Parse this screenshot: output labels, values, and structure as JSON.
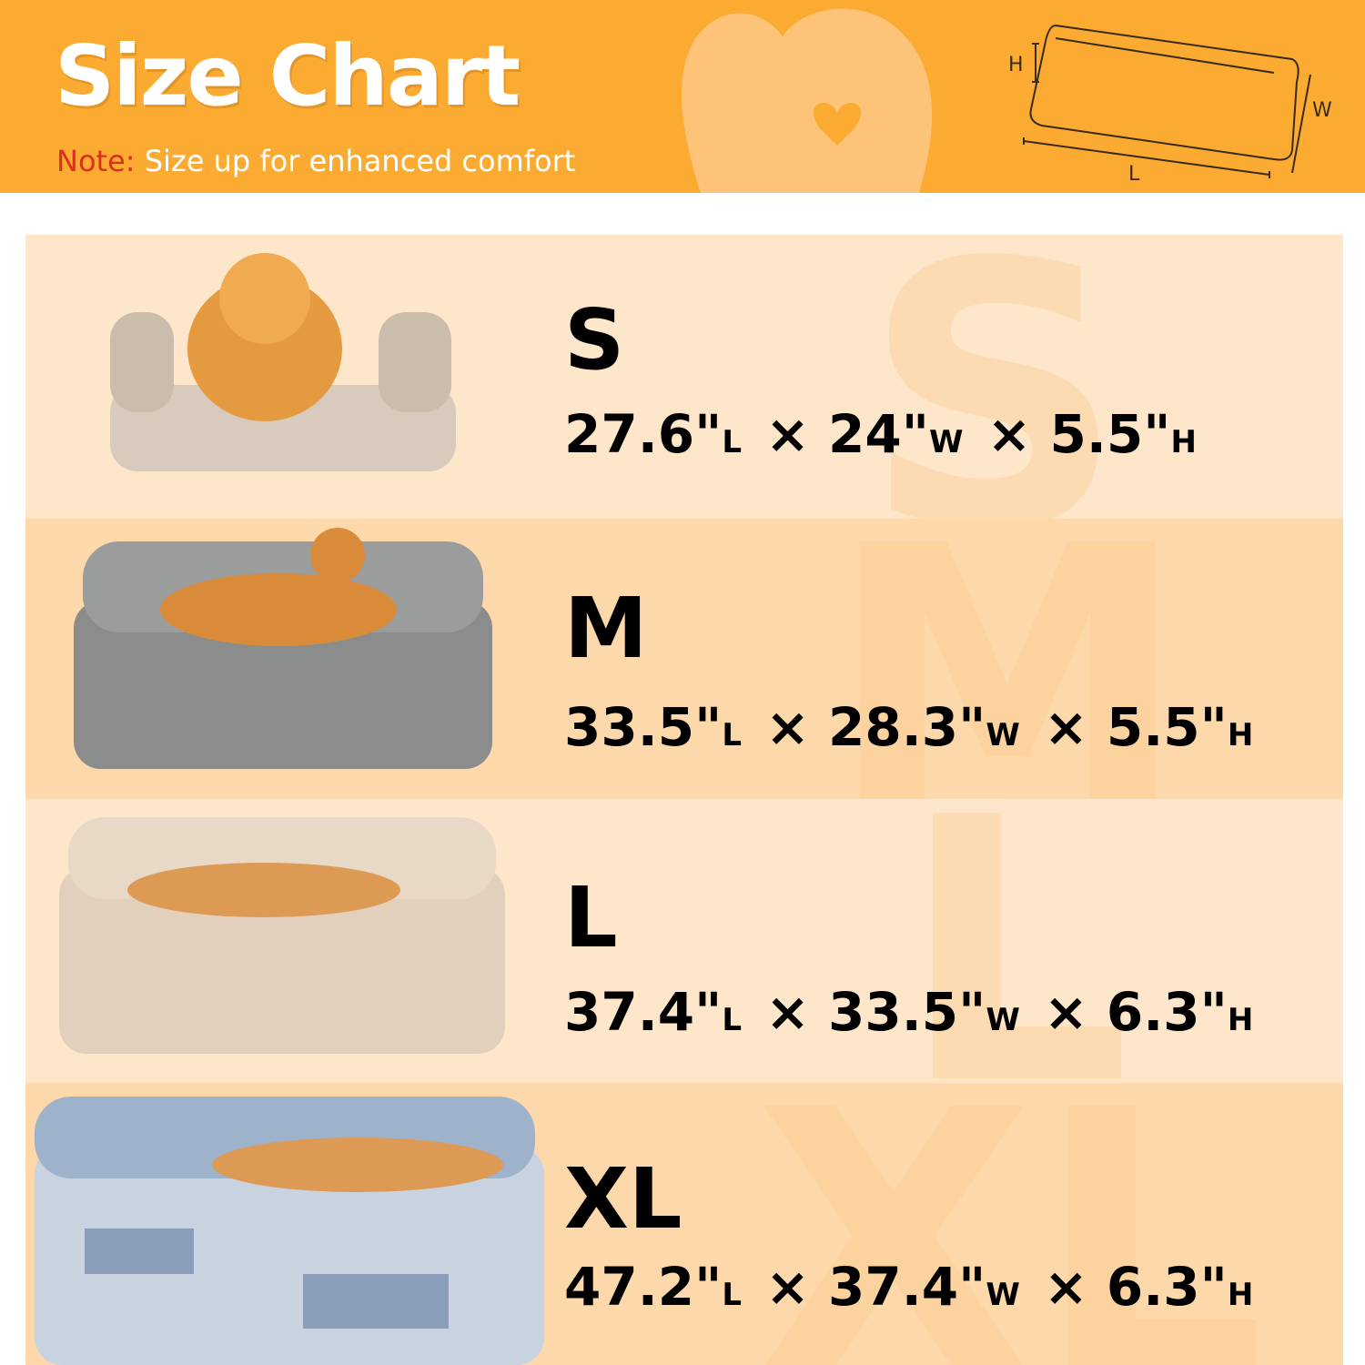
{
  "header": {
    "title": "Size Chart",
    "note_label": "Note:",
    "note_text": "Size up for enhanced comfort",
    "diagram_labels": {
      "h": "H",
      "w": "W",
      "l": "L"
    },
    "background_color": "#fcab32"
  },
  "sizes": [
    {
      "size": "S",
      "length": "27.6\"",
      "width": "24\"",
      "height": "5.5\"",
      "bed_color": "#d8cbbd",
      "dog": "pomeranian sitting"
    },
    {
      "size": "M",
      "length": "33.5\"",
      "width": "28.3\"",
      "height": "5.5\"",
      "bed_color": "#8a8d8c",
      "dog": "shiba lying"
    },
    {
      "size": "L",
      "length": "37.4\"",
      "width": "33.5\"",
      "height": "6.3\"",
      "bed_color": "#e3d0bc",
      "dog": "shiba sleeping"
    },
    {
      "size": "XL",
      "length": "47.2\"",
      "width": "37.4\"",
      "height": "6.3\"",
      "bed_color": "#9eb2cc",
      "dog": "shiba sleeping"
    }
  ],
  "unit_labels": {
    "l": "L",
    "w": "W",
    "h": "H",
    "times": "×"
  }
}
